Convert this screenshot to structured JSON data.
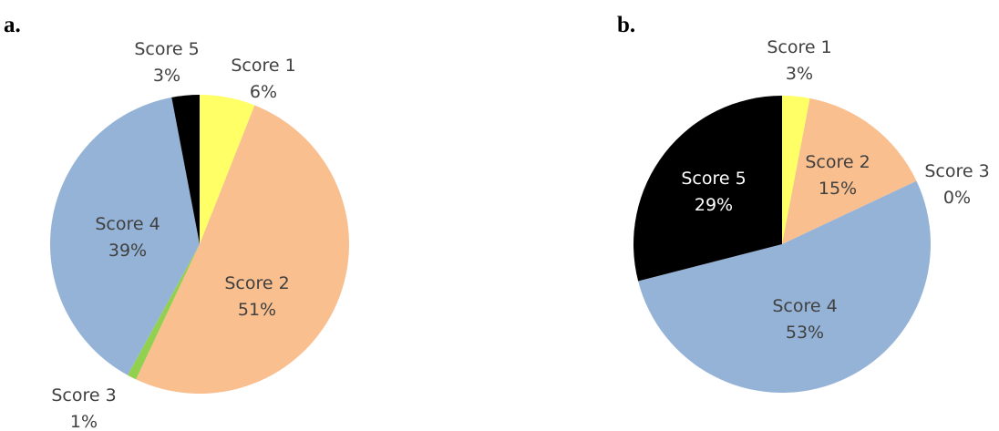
{
  "chart_data": [
    {
      "type": "pie",
      "panel_label": "a.",
      "slices": [
        {
          "label": "Score 1",
          "value": 6,
          "value_label": "6%",
          "color": "#FFFF66",
          "text_color": "#404040"
        },
        {
          "label": "Score 2",
          "value": 51,
          "value_label": "51%",
          "color": "#F9BF8F",
          "text_color": "#404040"
        },
        {
          "label": "Score 3",
          "value": 1,
          "value_label": "1%",
          "color": "#92D050",
          "text_color": "#404040"
        },
        {
          "label": "Score 4",
          "value": 39,
          "value_label": "39%",
          "color": "#95B3D7",
          "text_color": "#404040"
        },
        {
          "label": "Score 5",
          "value": 3,
          "value_label": "3%",
          "color": "#000000",
          "text_color": "#404040"
        }
      ]
    },
    {
      "type": "pie",
      "panel_label": "b.",
      "slices": [
        {
          "label": "Score 1",
          "value": 3,
          "value_label": "3%",
          "color": "#FFFF66",
          "text_color": "#404040"
        },
        {
          "label": "Score 2",
          "value": 15,
          "value_label": "15%",
          "color": "#F9BF8F",
          "text_color": "#404040"
        },
        {
          "label": "Score 3",
          "value": 0,
          "value_label": "0%",
          "color": "#92D050",
          "text_color": "#404040"
        },
        {
          "label": "Score 4",
          "value": 53,
          "value_label": "53%",
          "color": "#95B3D7",
          "text_color": "#404040"
        },
        {
          "label": "Score 5",
          "value": 29,
          "value_label": "29%",
          "color": "#000000",
          "text_color": "#FFFFFF"
        }
      ]
    }
  ]
}
